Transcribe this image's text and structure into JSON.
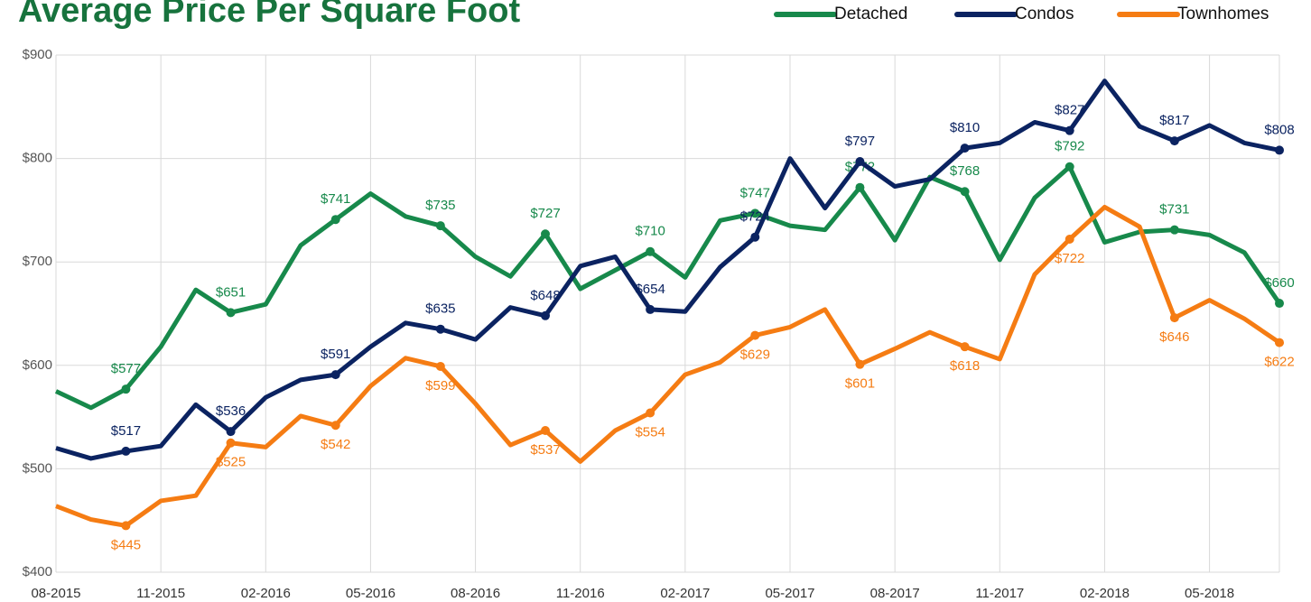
{
  "chart_data": {
    "type": "line",
    "title": "Average Price Per Square Foot",
    "categories": [
      "08-2015",
      null,
      null,
      "11-2015",
      null,
      null,
      "02-2016",
      null,
      null,
      "05-2016",
      null,
      null,
      "08-2016",
      null,
      null,
      "11-2016",
      null,
      null,
      "02-2017",
      null,
      null,
      "05-2017",
      null,
      null,
      "08-2017",
      null,
      null,
      "11-2017",
      null,
      null,
      "02-2018",
      null,
      null,
      "05-2018",
      null,
      null
    ],
    "ylim": [
      400,
      900
    ],
    "yticks": [
      {
        "value": 400,
        "label": "$400"
      },
      {
        "value": 500,
        "label": "$500"
      },
      {
        "value": 600,
        "label": "$600"
      },
      {
        "value": 700,
        "label": "$700"
      },
      {
        "value": 800,
        "label": "$800"
      },
      {
        "value": 900,
        "label": "$900"
      }
    ],
    "grid": true,
    "legend": "top-right",
    "series": [
      {
        "name": "Detached",
        "color": "#17894b",
        "values": [
          575,
          559,
          577,
          618,
          673,
          651,
          659,
          716,
          741,
          766,
          744,
          735,
          705,
          686,
          727,
          674,
          692,
          710,
          685,
          740,
          747,
          735,
          731,
          772,
          721,
          782,
          768,
          702,
          762,
          792,
          719,
          729,
          731,
          726,
          709,
          660
        ],
        "value_labels": [
          null,
          null,
          "$577",
          null,
          null,
          "$651",
          null,
          null,
          "$741",
          null,
          null,
          "$735",
          null,
          null,
          "$727",
          null,
          null,
          "$710",
          null,
          null,
          "$747",
          null,
          null,
          "$772",
          null,
          null,
          "$768",
          null,
          null,
          "$792",
          null,
          null,
          "$731",
          null,
          null,
          "$660"
        ]
      },
      {
        "name": "Condos",
        "color": "#0b2361",
        "values": [
          520,
          510,
          517,
          522,
          562,
          536,
          569,
          586,
          591,
          618,
          641,
          635,
          625,
          656,
          648,
          696,
          705,
          654,
          652,
          695,
          724,
          800,
          752,
          797,
          773,
          780,
          810,
          815,
          835,
          827,
          875,
          831,
          817,
          832,
          815,
          808
        ],
        "value_labels": [
          null,
          null,
          "$517",
          null,
          null,
          "$536",
          null,
          null,
          "$591",
          null,
          null,
          "$635",
          null,
          null,
          "$648",
          null,
          null,
          "$654",
          null,
          null,
          "$724",
          null,
          null,
          "$797",
          null,
          null,
          "$810",
          null,
          null,
          "$827",
          null,
          null,
          "$817",
          null,
          null,
          "$808"
        ]
      },
      {
        "name": "Townhomes",
        "color": "#f57c13",
        "values": [
          464,
          451,
          445,
          469,
          474,
          525,
          521,
          551,
          542,
          580,
          607,
          599,
          563,
          523,
          537,
          507,
          537,
          554,
          591,
          603,
          629,
          637,
          654,
          601,
          616,
          632,
          618,
          606,
          688,
          722,
          753,
          734,
          646,
          663,
          645,
          622
        ],
        "value_labels": [
          null,
          null,
          "$445",
          null,
          null,
          "$525",
          null,
          null,
          "$542",
          null,
          null,
          "$599",
          null,
          null,
          "$537",
          null,
          null,
          "$554",
          null,
          null,
          "$629",
          null,
          null,
          "$601",
          null,
          null,
          "$618",
          null,
          null,
          "$722",
          null,
          null,
          "$646",
          null,
          null,
          "$622"
        ]
      }
    ]
  }
}
